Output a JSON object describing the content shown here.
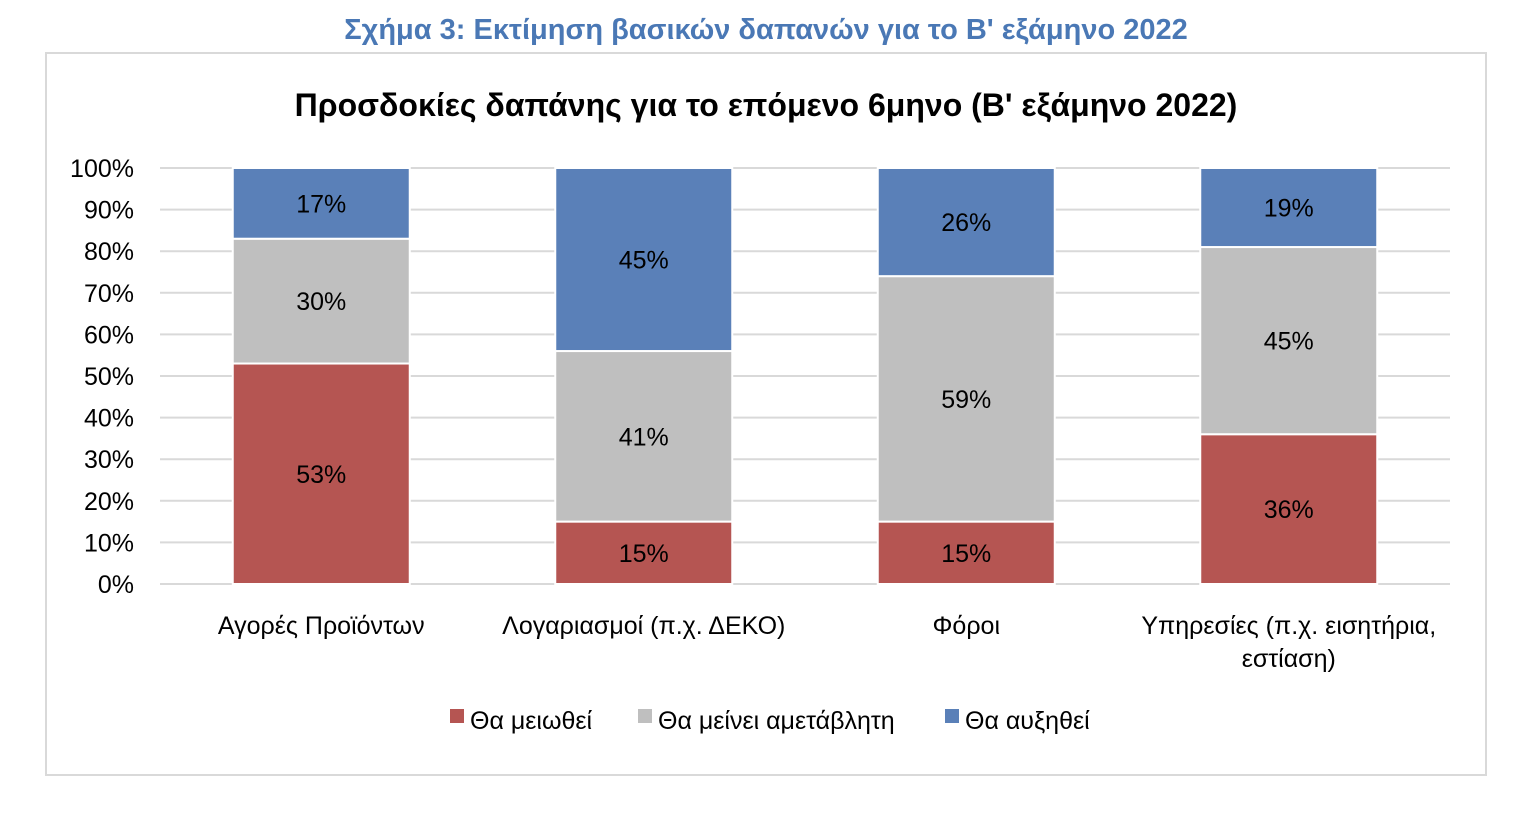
{
  "figure_caption": "Σχήμα 3: Εκτίμηση βασικών δαπανών για το Β' εξάμηνο 2022",
  "colors": {
    "caption": "#4a78b5",
    "grid": "#d9d9d9"
  },
  "chart_data": {
    "type": "bar",
    "stacked": true,
    "title": "Προσδοκίες δαπάνης για το επόμενο 6μηνο (Β' εξάμηνο 2022)",
    "categories": [
      [
        "Αγορές Προϊόντων"
      ],
      [
        "Λογαριασμοί (π.χ. ΔΕΚΟ)"
      ],
      [
        "Φόροι"
      ],
      [
        "Υπηρεσίες (π.χ. εισητήρια,",
        "εστίαση)"
      ]
    ],
    "series": [
      {
        "name": "Θα μειωθεί",
        "color": "#b55552",
        "values": [
          53,
          15,
          15,
          36
        ],
        "labels": [
          "53%",
          "15%",
          "15%",
          "36%"
        ]
      },
      {
        "name": "Θα μείνει αμετάβλητη",
        "color": "#bfbfbf",
        "values": [
          30,
          41,
          59,
          45
        ],
        "labels": [
          "30%",
          "41%",
          "59%",
          "45%"
        ]
      },
      {
        "name": "Θα αυξηθεί",
        "color": "#5a80b8",
        "values": [
          17,
          45,
          26,
          19
        ],
        "labels": [
          "17%",
          "45%",
          "26%",
          "19%"
        ]
      }
    ],
    "ylim": [
      0,
      100
    ],
    "yticks": [
      "0%",
      "10%",
      "20%",
      "30%",
      "40%",
      "50%",
      "60%",
      "70%",
      "80%",
      "90%",
      "100%"
    ],
    "grid": true,
    "legend_position": "bottom"
  }
}
